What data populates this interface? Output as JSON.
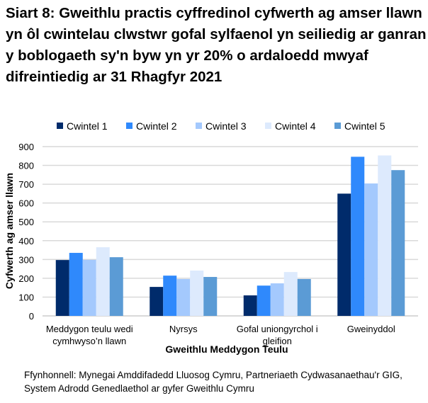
{
  "chart_data": {
    "type": "bar",
    "title": "Siart 8: Gweithlu practis cyffredinol cyfwerth ag amser llawn yn ôl cwintelau clwstwr gofal sylfaenol yn seiliedig ar ganran y boblogaeth sy'n byw yn yr 20% o ardaloedd mwyaf difreintiedig ar 31 Rhagfyr 2021",
    "xlabel": "Gweithlu Meddygon Teulu",
    "ylabel": "Cyfwerth ag amser llawn",
    "ylim": [
      0,
      900
    ],
    "yticks": [
      0,
      100,
      200,
      300,
      400,
      500,
      600,
      700,
      800,
      900
    ],
    "grid": true,
    "legend": "top",
    "categories": [
      "Meddygon teulu wedi cymhwyso’n llawn",
      "Nyrsys",
      "Gofal uniongyrchol i gleifion",
      "Gweinyddol"
    ],
    "series": [
      {
        "name": "Cwintel 1",
        "color": "#002b6b",
        "values": [
          297,
          154,
          109,
          650
        ]
      },
      {
        "name": "Cwintel 2",
        "color": "#2f89fc",
        "values": [
          335,
          214,
          161,
          846
        ]
      },
      {
        "name": "Cwintel 3",
        "color": "#a4c9fd",
        "values": [
          298,
          196,
          173,
          704
        ]
      },
      {
        "name": "Cwintel 4",
        "color": "#ddeafd",
        "values": [
          365,
          241,
          233,
          853
        ]
      },
      {
        "name": "Cwintel 5",
        "color": "#5b9bd5",
        "values": [
          312,
          207,
          196,
          775
        ]
      }
    ],
    "source": "Ffynhonnell: Mynegai Amddifadedd Lluosog Cymru, Partneriaeth Cydwasanaethau'r GIG, System Adrodd Genedlaethol ar gyfer Gweithlu Cymru"
  }
}
